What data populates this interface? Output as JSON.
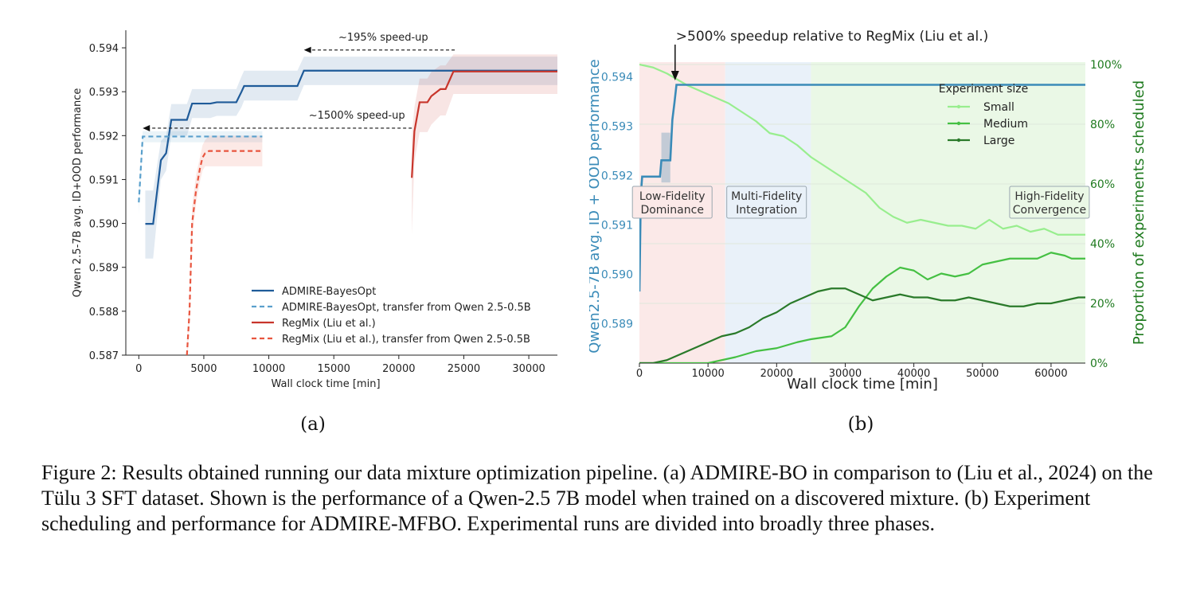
{
  "figure": {
    "caption": "Figure 2: Results obtained running our data mixture optimization pipeline. (a) ADMIRE-BO in comparison to (Liu et al., 2024) on the Tülu 3 SFT dataset. Shown is the performance of a Qwen-2.5 7B model when trained on a discovered mixture. (b) Experiment scheduling and performance for ADMIRE-MFBO. Experimental runs are divided into broadly three phases."
  },
  "colors": {
    "admire": "#1f5b99",
    "admire_transfer": "#5aa0cc",
    "regmix": "#c8352b",
    "regmix_transfer": "#e8553f",
    "mfbo_perf": "#3a8bb8",
    "small": "#98ee8e",
    "medium": "#45c043",
    "large": "#2a7a2a",
    "axis_right": "#1e7a1e"
  },
  "chart_data": [
    {
      "type": "line",
      "sublabel": "(a)",
      "xlabel": "Wall clock time [min]",
      "ylabel": "Qwen 2.5-7B avg. ID+OOD performance",
      "xlim": [
        -1000,
        32200
      ],
      "ylim": [
        0.587,
        0.5944
      ],
      "xticks": [
        0,
        5000,
        10000,
        15000,
        20000,
        25000,
        30000
      ],
      "yticks": [
        0.587,
        0.588,
        0.589,
        0.59,
        0.591,
        0.592,
        0.593,
        0.594
      ],
      "legend_position": "lower-right",
      "series": [
        {
          "name": "ADMIRE-BayesOpt",
          "style": "solid",
          "color_key": "admire",
          "x": [
            500,
            1100,
            1700,
            2100,
            2500,
            2800,
            3700,
            4100,
            5500,
            6000,
            7500,
            7900,
            8100,
            9500,
            11000,
            12200,
            12700,
            32200
          ],
          "y": [
            0.58999,
            0.58999,
            0.59144,
            0.5916,
            0.59236,
            0.59236,
            0.59236,
            0.59273,
            0.59273,
            0.59276,
            0.59276,
            0.593,
            0.59313,
            0.59313,
            0.59313,
            0.59313,
            0.59348,
            0.59348
          ],
          "band_lo": [
            0.5892,
            0.5892,
            0.591,
            0.5912,
            0.592,
            0.592,
            0.592,
            0.5924,
            0.5924,
            0.59245,
            0.59245,
            0.59265,
            0.5928,
            0.5928,
            0.5928,
            0.5928,
            0.59315,
            0.59315
          ],
          "band_hi": [
            0.59075,
            0.59075,
            0.59188,
            0.592,
            0.59272,
            0.59272,
            0.59272,
            0.59306,
            0.59306,
            0.59306,
            0.59306,
            0.59335,
            0.59348,
            0.59348,
            0.59348,
            0.59348,
            0.5938,
            0.5938
          ]
        },
        {
          "name": "ADMIRE-BayesOpt, transfer from Qwen 2.5-0.5B",
          "style": "dashed",
          "color_key": "admire_transfer",
          "x": [
            0,
            300,
            600,
            9500
          ],
          "y": [
            0.59048,
            0.59198,
            0.59198,
            0.59198
          ],
          "band_lo": [
            0.5902,
            0.59185,
            0.59185,
            0.59185
          ],
          "band_hi": [
            0.59075,
            0.5921,
            0.5921,
            0.5921
          ]
        },
        {
          "name": "RegMix (Liu et al.)",
          "style": "solid",
          "color_key": "regmix",
          "x": [
            21000,
            21200,
            21600,
            22200,
            22500,
            23200,
            23600,
            24200,
            24700,
            32200
          ],
          "y": [
            0.59104,
            0.5921,
            0.59276,
            0.59276,
            0.5929,
            0.59306,
            0.59306,
            0.59346,
            0.59346,
            0.59346
          ],
          "band_lo": [
            0.58975,
            0.5914,
            0.59208,
            0.59208,
            0.59225,
            0.59246,
            0.59246,
            0.59295,
            0.59295,
            0.59295
          ],
          "band_hi": [
            0.592,
            0.59265,
            0.5933,
            0.5933,
            0.59345,
            0.5936,
            0.5936,
            0.59385,
            0.59385,
            0.59385
          ]
        },
        {
          "name": "RegMix (Liu et al.), transfer from Qwen 2.5-0.5B",
          "style": "dashed",
          "color_key": "regmix_transfer",
          "x": [
            3700,
            3900,
            4100,
            4400,
            4700,
            4900,
            5100,
            5400,
            9500
          ],
          "y": [
            0.587,
            0.588,
            0.59,
            0.59075,
            0.59125,
            0.5915,
            0.5916,
            0.59165,
            0.59165
          ],
          "band_lo": [
            0.5868,
            0.5877,
            0.5897,
            0.59045,
            0.59095,
            0.5912,
            0.5913,
            0.5913,
            0.5913
          ],
          "band_hi": [
            0.5873,
            0.5884,
            0.5904,
            0.5911,
            0.5915,
            0.59178,
            0.5919,
            0.592,
            0.592
          ]
        }
      ],
      "annotations": [
        {
          "text": "~195% speed-up",
          "x_from": 24300,
          "x_to": 12700,
          "y": 0.59395
        },
        {
          "text": "~1500% speed-up",
          "x_from": 21000,
          "x_to": 300,
          "y": 0.59217
        }
      ]
    },
    {
      "type": "line",
      "sublabel": "(b)",
      "xlabel": "Wall clock time [min]",
      "ylabel_left": "Qwen2.5-7B avg. ID + OOD performance",
      "ylabel_right": "Proportion of experiments scheduled",
      "xlim": [
        0,
        65000
      ],
      "ylim_left": [
        0.5882,
        0.5943
      ],
      "ylim_right": [
        0,
        100
      ],
      "xticks": [
        0,
        10000,
        20000,
        30000,
        40000,
        50000,
        60000
      ],
      "yticks_left": [
        0.589,
        0.59,
        0.591,
        0.592,
        0.593,
        0.594
      ],
      "yticks_right": [
        0,
        20,
        40,
        60,
        80,
        100
      ],
      "yticklabels_right": [
        "0%",
        "20%",
        "40%",
        "60%",
        "80%",
        "100%"
      ],
      "top_annotation": ">500% speedup relative to RegMix (Liu et al.)",
      "top_annotation_x": 5200,
      "phases": [
        {
          "label": "Low-Fidelity\nDominance",
          "x_from": 0,
          "x_to": 12500,
          "color": "#fbe9e8"
        },
        {
          "label": "Multi-Fidelity\nIntegration",
          "x_from": 12500,
          "x_to": 25000,
          "color": "#e9f1f9"
        },
        {
          "label": "High-Fidelity\nConvergence",
          "x_from": 25000,
          "x_to": 65000,
          "color": "#eaf8e6"
        }
      ],
      "legend_title": "Experiment size",
      "legend_position": "upper-right",
      "performance": {
        "x": [
          0,
          200,
          400,
          3000,
          3200,
          4500,
          4800,
          5100,
          5400,
          65000
        ],
        "y": [
          0.58965,
          0.5916,
          0.59198,
          0.59198,
          0.59231,
          0.59231,
          0.59313,
          0.59347,
          0.59384,
          0.59384
        ],
        "band": {
          "x_from": 3200,
          "x_to": 4500,
          "lo": 0.59186,
          "hi": 0.59287
        }
      },
      "series": [
        {
          "name": "Small",
          "color_key": "small",
          "x": [
            0,
            2000,
            4000,
            5500,
            7000,
            9000,
            11000,
            13000,
            15000,
            17000,
            19000,
            21000,
            23000,
            25000,
            27000,
            29000,
            31000,
            33000,
            35000,
            37000,
            39000,
            41000,
            43000,
            45000,
            47000,
            49000,
            51000,
            53000,
            55000,
            57000,
            59000,
            61000,
            63000,
            65000
          ],
          "y": [
            100,
            99,
            97,
            95,
            93,
            91,
            89,
            87,
            84,
            81,
            77,
            76,
            73,
            69,
            66,
            63,
            60,
            57,
            52,
            49,
            47,
            48,
            47,
            46,
            46,
            45,
            48,
            45,
            46,
            44,
            45,
            43,
            43,
            43
          ]
        },
        {
          "name": "Medium",
          "color_key": "medium",
          "x": [
            0,
            10000,
            14000,
            17000,
            20000,
            23000,
            25000,
            28000,
            30000,
            32000,
            34000,
            36000,
            38000,
            40000,
            42000,
            44000,
            46000,
            48000,
            50000,
            52000,
            54000,
            56000,
            58000,
            60000,
            62000,
            63000,
            65000
          ],
          "y": [
            0,
            0,
            2,
            4,
            5,
            7,
            8,
            9,
            12,
            19,
            25,
            29,
            32,
            31,
            28,
            30,
            29,
            30,
            33,
            34,
            35,
            35,
            35,
            37,
            36,
            35,
            35
          ]
        },
        {
          "name": "Large",
          "color_key": "large",
          "x": [
            0,
            2000,
            4000,
            6000,
            8000,
            10000,
            12000,
            14000,
            16000,
            18000,
            20000,
            22000,
            24000,
            26000,
            28000,
            30000,
            32000,
            34000,
            36000,
            38000,
            40000,
            42000,
            44000,
            46000,
            48000,
            50000,
            52000,
            54000,
            56000,
            58000,
            60000,
            62000,
            64000,
            65000
          ],
          "y": [
            0,
            0,
            1,
            3,
            5,
            7,
            9,
            10,
            12,
            15,
            17,
            20,
            22,
            24,
            25,
            25,
            23,
            21,
            22,
            23,
            22,
            22,
            21,
            21,
            22,
            21,
            20,
            19,
            19,
            20,
            20,
            21,
            22,
            22
          ]
        }
      ]
    }
  ]
}
